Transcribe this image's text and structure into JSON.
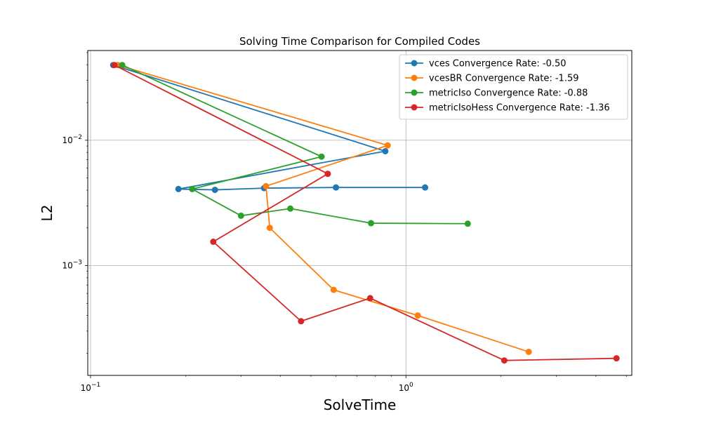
{
  "chart_data": {
    "type": "line",
    "title": "Solving Time Comparison for Compiled Codes",
    "xlabel": "SolveTime",
    "ylabel": "L2",
    "xscale": "log",
    "yscale": "log",
    "xlim": [
      0.098,
      5.2
    ],
    "ylim": [
      0.000133,
      0.052
    ],
    "x_ticks": [
      {
        "value": 0.1,
        "base": "10",
        "exp": "−1"
      },
      {
        "value": 1,
        "base": "10",
        "exp": "0"
      }
    ],
    "y_ticks": [
      {
        "value": 0.001,
        "base": "10",
        "exp": "−3"
      },
      {
        "value": 0.01,
        "base": "10",
        "exp": "−2"
      }
    ],
    "grid": true,
    "legend_position": "upper-right",
    "series": [
      {
        "name": "vces Convergence Rate: -0.50",
        "color": "#1f77b4",
        "x": [
          0.118,
          0.86,
          0.19,
          0.248,
          0.355,
          0.6,
          1.15
        ],
        "y": [
          0.0398,
          0.00818,
          0.00408,
          0.00402,
          0.00415,
          0.0042,
          0.0042
        ]
      },
      {
        "name": "vcesBR Convergence Rate: -1.59",
        "color": "#ff7f0e",
        "x": [
          0.122,
          0.875,
          0.36,
          0.37,
          0.59,
          1.09,
          2.45
        ],
        "y": [
          0.0398,
          0.0091,
          0.0043,
          0.002,
          0.00064,
          0.0004,
          0.000205
        ]
      },
      {
        "name": "metricIso Convergence Rate: -0.88",
        "color": "#2ca02c",
        "x": [
          0.126,
          0.54,
          0.21,
          0.3,
          0.43,
          0.775,
          1.57
        ],
        "y": [
          0.0398,
          0.0074,
          0.00408,
          0.0025,
          0.00285,
          0.00218,
          0.00216
        ]
      },
      {
        "name": "metricIsoHess Convergence Rate: -1.36",
        "color": "#d62728",
        "x": [
          0.119,
          0.565,
          0.245,
          0.465,
          0.77,
          2.05,
          4.65
        ],
        "y": [
          0.0398,
          0.0054,
          0.00155,
          0.00036,
          0.00055,
          0.000175,
          0.000182
        ]
      }
    ]
  }
}
